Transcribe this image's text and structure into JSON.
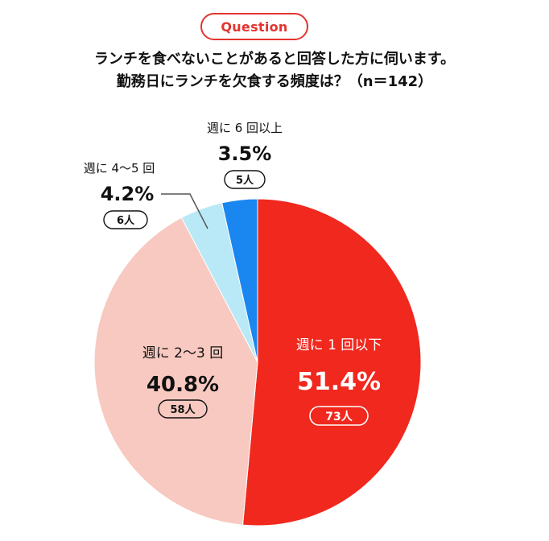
{
  "badge": "Question",
  "title_line1": "ランチを食べないことがあると回答した方に伺います。",
  "title_line2": "勤務日にランチを欠食する頻度は？（n＝142）",
  "colors": {
    "accent": "#e3342f",
    "slice1": "#f0281e",
    "slice2": "#f8c9c0",
    "slice3": "#b9e9f7",
    "slice4": "#1a87f0"
  },
  "chart_data": {
    "type": "pie",
    "n": 142,
    "slices": [
      {
        "label": "週に 1 回以下",
        "percent": "51.4%",
        "count": "73人",
        "value": 51.4
      },
      {
        "label": "週に 2〜3 回",
        "percent": "40.8%",
        "count": "58人",
        "value": 40.8
      },
      {
        "label": "週に 4〜5 回",
        "percent": "4.2%",
        "count": "6人",
        "value": 4.2
      },
      {
        "label": "週に 6 回以上",
        "percent": "3.5%",
        "count": "5人",
        "value": 3.5
      }
    ]
  }
}
